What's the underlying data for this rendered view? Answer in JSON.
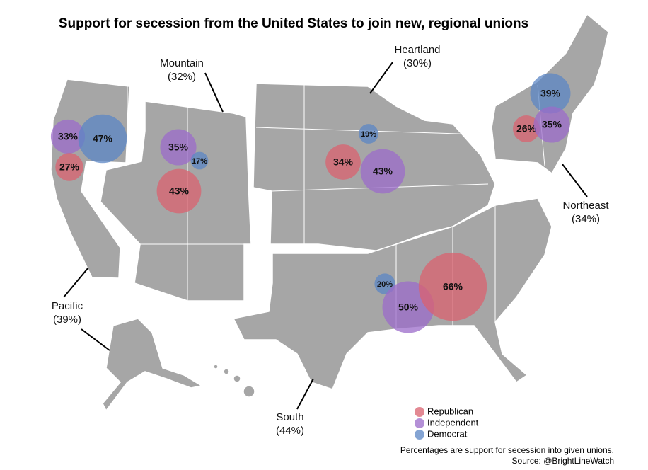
{
  "title": "Support for secession from the United States to join new, regional unions",
  "regions": [
    {
      "name": "Pacific",
      "overall": {
        "value": 39,
        "label": "(39%)"
      },
      "bubbles": [
        {
          "value": 33,
          "label": "33%",
          "color": "#9b6bc9"
        },
        {
          "value": 47,
          "label": "47%",
          "color": "#5b86c4"
        },
        {
          "value": 27,
          "label": "27%",
          "color": "#d9616f"
        }
      ]
    },
    {
      "name": "Mountain",
      "overall": {
        "value": 32,
        "label": "(32%)"
      },
      "bubbles": [
        {
          "value": 35,
          "label": "35%",
          "color": "#9b6bc9"
        },
        {
          "value": 17,
          "label": "17%",
          "color": "#5b86c4"
        },
        {
          "value": 43,
          "label": "43%",
          "color": "#d9616f"
        }
      ]
    },
    {
      "name": "Heartland",
      "overall": {
        "value": 30,
        "label": "(30%)"
      },
      "bubbles": [
        {
          "value": 19,
          "label": "19%",
          "color": "#5b86c4"
        },
        {
          "value": 34,
          "label": "34%",
          "color": "#d9616f"
        },
        {
          "value": 43,
          "label": "43%",
          "color": "#9b6bc9"
        }
      ]
    },
    {
      "name": "Northeast",
      "overall": {
        "value": 34,
        "label": "(34%)"
      },
      "bubbles": [
        {
          "value": 39,
          "label": "39%",
          "color": "#5b86c4"
        },
        {
          "value": 26,
          "label": "26%",
          "color": "#d9616f"
        },
        {
          "value": 35,
          "label": "35%",
          "color": "#9b6bc9"
        }
      ]
    },
    {
      "name": "South",
      "overall": {
        "value": 44,
        "label": "(44%)"
      },
      "bubbles": [
        {
          "value": 20,
          "label": "20%",
          "color": "#5b86c4"
        },
        {
          "value": 50,
          "label": "50%",
          "color": "#9b6bc9"
        },
        {
          "value": 66,
          "label": "66%",
          "color": "#d9616f"
        }
      ]
    }
  ],
  "legend": [
    {
      "name": "Republican",
      "color": "#d9616f"
    },
    {
      "name": "Independent",
      "color": "#9b6bc9"
    },
    {
      "name": "Democrat",
      "color": "#5b86c4"
    }
  ],
  "note": "Percentages are support for secession into given unions.",
  "source": "Source: @BrightLineWatch"
}
